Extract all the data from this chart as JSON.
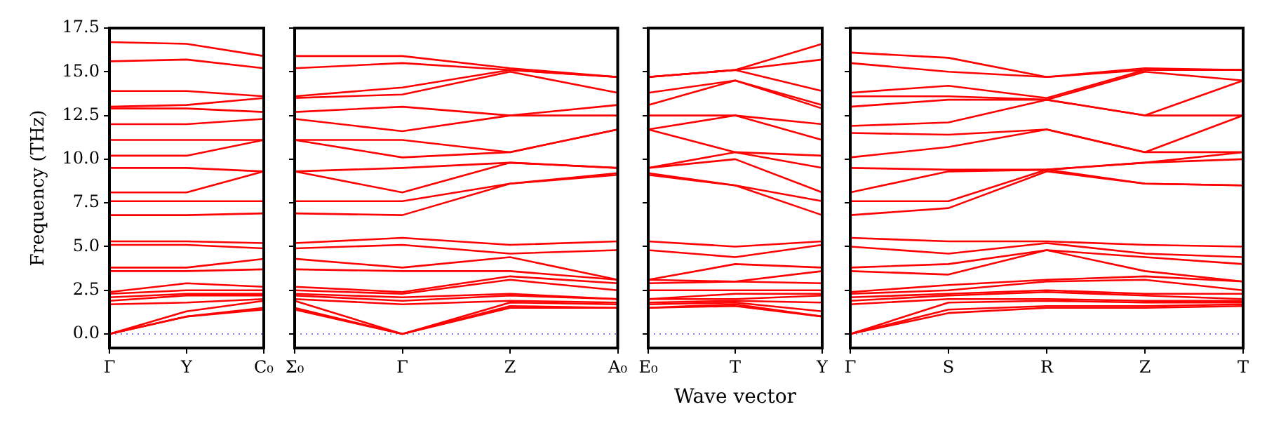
{
  "chart_data": [
    {
      "type": "line",
      "ylabel": "Frequency (THz)",
      "color": "#ff0000",
      "categories": [
        "Γ",
        "Y",
        "C₀"
      ],
      "ylim": [
        -0.8,
        17.5
      ],
      "yticks": [
        {
          "value": 0,
          "label": "0.0"
        },
        2.5,
        {
          "value": 5,
          "label": "5.0"
        },
        7.5,
        {
          "value": 10,
          "label": "10.0"
        },
        12.5,
        {
          "value": 15,
          "label": "15.0"
        },
        17.5
      ],
      "ref_lines": [
        {
          "axis": "y",
          "value": 0,
          "color": "#8080ff",
          "line_style": "dotted"
        }
      ],
      "series": [
        {
          "values": [
            0,
            1.0,
            1.4
          ]
        },
        {
          "values": [
            0,
            1.0,
            1.5
          ]
        },
        {
          "values": [
            0,
            1.3,
            1.9
          ]
        },
        {
          "values": [
            1.7,
            1.8,
            2.0
          ]
        },
        {
          "values": [
            1.9,
            2.2,
            2.2
          ]
        },
        {
          "values": [
            2.1,
            2.3,
            2.3
          ]
        },
        {
          "values": [
            2.3,
            2.5,
            2.5
          ]
        },
        {
          "values": [
            2.4,
            2.9,
            2.7
          ]
        },
        {
          "values": [
            3.6,
            3.6,
            3.7
          ]
        },
        {
          "values": [
            3.8,
            3.8,
            4.3
          ]
        },
        {
          "values": [
            5.1,
            5.1,
            4.9
          ]
        },
        {
          "values": [
            5.3,
            5.3,
            5.2
          ]
        },
        {
          "values": [
            6.8,
            6.8,
            6.9
          ]
        },
        {
          "values": [
            7.6,
            7.6,
            7.6
          ]
        },
        {
          "values": [
            8.1,
            8.1,
            9.3
          ]
        },
        {
          "values": [
            9.5,
            9.5,
            9.3
          ]
        },
        {
          "values": [
            10.2,
            10.2,
            11.1
          ]
        },
        {
          "values": [
            11.1,
            11.1,
            11.1
          ]
        },
        {
          "values": [
            12.0,
            12.0,
            12.3
          ]
        },
        {
          "values": [
            12.9,
            12.9,
            12.7
          ]
        },
        {
          "values": [
            13.0,
            13.1,
            13.5
          ]
        },
        {
          "values": [
            13.9,
            13.9,
            13.6
          ]
        },
        {
          "values": [
            15.6,
            15.7,
            15.2
          ]
        },
        {
          "values": [
            16.7,
            16.6,
            15.9
          ]
        }
      ]
    },
    {
      "type": "line",
      "color": "#ff0000",
      "tick_labels": "x",
      "categories": [
        "Σ₀",
        "Γ",
        "Z",
        "A₀"
      ],
      "ylim": [
        -0.8,
        17.5
      ],
      "yticks": [
        {
          "value": 0,
          "label": null
        },
        {
          "value": 2.5,
          "label": null
        },
        {
          "value": 5,
          "label": null
        },
        {
          "value": 7.5,
          "label": null
        },
        {
          "value": 10,
          "label": null
        },
        {
          "value": 12.5,
          "label": null
        },
        {
          "value": 15,
          "label": null
        },
        {
          "value": 17.5,
          "label": null
        }
      ],
      "ref_lines": [
        {
          "axis": "y",
          "value": 0,
          "color": "#8080ff",
          "line_style": "dotted"
        }
      ],
      "series": [
        {
          "values": [
            1.4,
            0,
            1.5,
            1.5
          ]
        },
        {
          "values": [
            1.5,
            0,
            1.6,
            1.5
          ]
        },
        {
          "values": [
            1.9,
            0,
            1.8,
            1.7
          ]
        },
        {
          "values": [
            2.0,
            1.7,
            1.9,
            1.8
          ]
        },
        {
          "values": [
            2.2,
            1.9,
            2.2,
            2.0
          ]
        },
        {
          "values": [
            2.3,
            2.1,
            2.3,
            2.0
          ]
        },
        {
          "values": [
            2.5,
            2.3,
            3.1,
            2.5
          ]
        },
        {
          "values": [
            2.7,
            2.4,
            3.3,
            2.9
          ]
        },
        {
          "values": [
            3.7,
            3.6,
            3.6,
            3.1
          ]
        },
        {
          "values": [
            4.3,
            3.8,
            4.4,
            3.1
          ]
        },
        {
          "values": [
            4.9,
            5.1,
            4.6,
            4.8
          ]
        },
        {
          "values": [
            5.2,
            5.5,
            5.1,
            5.3
          ]
        },
        {
          "values": [
            6.9,
            6.8,
            8.6,
            9.1
          ]
        },
        {
          "values": [
            7.6,
            7.6,
            8.6,
            9.2
          ]
        },
        {
          "values": [
            9.3,
            8.1,
            9.8,
            9.5
          ]
        },
        {
          "values": [
            9.3,
            9.5,
            9.8,
            9.5
          ]
        },
        {
          "values": [
            11.1,
            10.1,
            10.4,
            11.7
          ]
        },
        {
          "values": [
            11.1,
            11.1,
            10.4,
            11.7
          ]
        },
        {
          "values": [
            12.3,
            11.6,
            12.5,
            12.5
          ]
        },
        {
          "values": [
            12.7,
            13.0,
            12.5,
            13.1
          ]
        },
        {
          "values": [
            13.5,
            13.7,
            15.0,
            13.8
          ]
        },
        {
          "values": [
            13.6,
            14.1,
            15.1,
            14.7
          ]
        },
        {
          "values": [
            15.2,
            15.5,
            15.1,
            14.7
          ]
        },
        {
          "values": [
            15.9,
            15.9,
            15.2,
            14.7
          ]
        }
      ]
    },
    {
      "type": "line",
      "color": "#ff0000",
      "tick_labels": "x",
      "xlabel": "Wave vector",
      "categories": [
        "E₀",
        "T",
        "Y"
      ],
      "ylim": [
        -0.8,
        17.5
      ],
      "yticks": [
        {
          "value": 0,
          "label": null
        },
        {
          "value": 2.5,
          "label": null
        },
        {
          "value": 5,
          "label": null
        },
        {
          "value": 7.5,
          "label": null
        },
        {
          "value": 10,
          "label": null
        },
        {
          "value": 12.5,
          "label": null
        },
        {
          "value": 15,
          "label": null
        },
        {
          "value": 17.5,
          "label": null
        }
      ],
      "ref_lines": [
        {
          "axis": "y",
          "value": 0,
          "color": "#8080ff",
          "line_style": "dotted"
        }
      ],
      "series": [
        {
          "values": [
            1.5,
            1.6,
            1.0
          ]
        },
        {
          "values": [
            1.5,
            1.7,
            1.0
          ]
        },
        {
          "values": [
            1.7,
            1.8,
            1.3
          ]
        },
        {
          "values": [
            1.8,
            1.9,
            1.8
          ]
        },
        {
          "values": [
            2.0,
            2.0,
            2.2
          ]
        },
        {
          "values": [
            2.0,
            2.3,
            2.3
          ]
        },
        {
          "values": [
            2.5,
            2.5,
            2.5
          ]
        },
        {
          "values": [
            2.9,
            3.0,
            2.9
          ]
        },
        {
          "values": [
            3.1,
            3.0,
            3.6
          ]
        },
        {
          "values": [
            3.1,
            4.0,
            3.8
          ]
        },
        {
          "values": [
            4.8,
            4.4,
            5.1
          ]
        },
        {
          "values": [
            5.3,
            5.0,
            5.3
          ]
        },
        {
          "values": [
            9.1,
            8.5,
            6.8
          ]
        },
        {
          "values": [
            9.2,
            8.5,
            7.6
          ]
        },
        {
          "values": [
            9.5,
            10.0,
            8.1
          ]
        },
        {
          "values": [
            9.5,
            10.4,
            9.5
          ]
        },
        {
          "values": [
            11.7,
            10.4,
            10.2
          ]
        },
        {
          "values": [
            11.7,
            12.5,
            11.1
          ]
        },
        {
          "values": [
            12.5,
            12.5,
            12.0
          ]
        },
        {
          "values": [
            13.1,
            14.5,
            12.9
          ]
        },
        {
          "values": [
            13.8,
            14.5,
            13.1
          ]
        },
        {
          "values": [
            14.7,
            15.1,
            13.9
          ]
        },
        {
          "values": [
            14.7,
            15.1,
            15.7
          ]
        },
        {
          "values": [
            14.7,
            15.1,
            16.6
          ]
        }
      ]
    },
    {
      "type": "line",
      "color": "#ff0000",
      "tick_labels": "x",
      "categories": [
        "Γ",
        "S",
        "R",
        "Z",
        "T"
      ],
      "ylim": [
        -0.8,
        17.5
      ],
      "yticks": [
        {
          "value": 0,
          "label": null
        },
        {
          "value": 2.5,
          "label": null
        },
        {
          "value": 5,
          "label": null
        },
        {
          "value": 7.5,
          "label": null
        },
        {
          "value": 10,
          "label": null
        },
        {
          "value": 12.5,
          "label": null
        },
        {
          "value": 15,
          "label": null
        },
        {
          "value": 17.5,
          "label": null
        }
      ],
      "ref_lines": [
        {
          "axis": "y",
          "value": 0,
          "color": "#8080ff",
          "line_style": "dotted"
        }
      ],
      "series": [
        {
          "values": [
            0,
            1.2,
            1.5,
            1.5,
            1.6
          ]
        },
        {
          "values": [
            0,
            1.4,
            1.6,
            1.6,
            1.7
          ]
        },
        {
          "values": [
            0,
            1.8,
            1.9,
            1.8,
            1.8
          ]
        },
        {
          "values": [
            1.7,
            2.0,
            2.0,
            1.9,
            1.9
          ]
        },
        {
          "values": [
            1.9,
            2.2,
            2.4,
            2.2,
            2.0
          ]
        },
        {
          "values": [
            2.1,
            2.3,
            2.5,
            2.3,
            2.3
          ]
        },
        {
          "values": [
            2.3,
            2.5,
            3.0,
            3.1,
            2.5
          ]
        },
        {
          "values": [
            2.4,
            2.8,
            3.1,
            3.3,
            3.0
          ]
        },
        {
          "values": [
            3.6,
            3.4,
            4.8,
            3.6,
            3.0
          ]
        },
        {
          "values": [
            3.8,
            4.0,
            4.8,
            4.4,
            4.0
          ]
        },
        {
          "values": [
            5.0,
            4.6,
            5.2,
            4.6,
            4.4
          ]
        },
        {
          "values": [
            5.5,
            5.3,
            5.3,
            5.1,
            5.0
          ]
        },
        {
          "values": [
            6.8,
            7.2,
            9.3,
            8.6,
            8.5
          ]
        },
        {
          "values": [
            7.6,
            7.6,
            9.4,
            8.6,
            8.5
          ]
        },
        {
          "values": [
            8.1,
            9.3,
            9.4,
            9.8,
            10.0
          ]
        },
        {
          "values": [
            9.5,
            9.4,
            9.4,
            9.8,
            10.4
          ]
        },
        {
          "values": [
            10.1,
            10.7,
            11.7,
            10.4,
            10.4
          ]
        },
        {
          "values": [
            11.5,
            11.4,
            11.7,
            10.4,
            12.5
          ]
        },
        {
          "values": [
            11.9,
            12.1,
            13.4,
            12.5,
            12.5
          ]
        },
        {
          "values": [
            13.0,
            13.4,
            13.4,
            12.5,
            14.5
          ]
        },
        {
          "values": [
            13.6,
            13.6,
            13.4,
            15.0,
            14.5
          ]
        },
        {
          "values": [
            13.8,
            14.2,
            13.5,
            15.1,
            15.1
          ]
        },
        {
          "values": [
            15.5,
            15.0,
            14.7,
            15.1,
            15.1
          ]
        },
        {
          "values": [
            16.1,
            15.8,
            14.7,
            15.2,
            15.1
          ]
        }
      ]
    }
  ]
}
